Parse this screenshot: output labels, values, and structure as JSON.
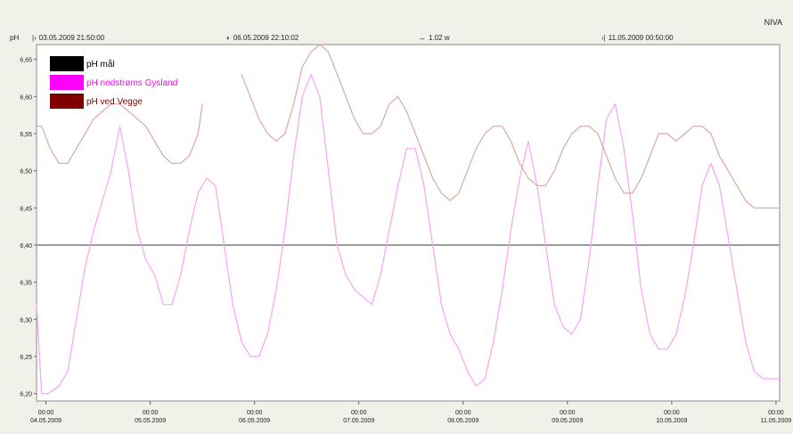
{
  "app": {
    "brand": "NIVA"
  },
  "toolbar": {
    "unit_label": "pH",
    "start_time": "03.05.2009 21:50:00",
    "cursor_time": "06.05.2009 22:10:02",
    "span": "1.02 w",
    "end_time": "11.05.2009 00:50:00",
    "start_icon": "start-marker-icon",
    "cursor_icon": "cursor-marker-icon",
    "span_icon": "span-arrows-icon",
    "end_icon": "end-marker-icon"
  },
  "chart_data": {
    "type": "line",
    "ylim": [
      6.19,
      6.67
    ],
    "xlim": [
      "03.05.2009 21:50",
      "11.05.2009 00:50"
    ],
    "yticks": [
      "6,65",
      "6,60",
      "6,55",
      "6,50",
      "6,45",
      "6,40",
      "6,35",
      "6,30",
      "6,25",
      "6,20"
    ],
    "xticks": [
      {
        "time": "00:00",
        "date": "04.05.2009"
      },
      {
        "time": "00:00",
        "date": "05.05.2009"
      },
      {
        "time": "00:00",
        "date": "06.05.2009"
      },
      {
        "time": "00:00",
        "date": "07.05.2009"
      },
      {
        "time": "00:00",
        "date": "08.05.2009"
      },
      {
        "time": "00:00",
        "date": "09.05.2009"
      },
      {
        "time": "00:00",
        "date": "10.05.2009"
      },
      {
        "time": "00:00",
        "date": "11.05.2009"
      }
    ],
    "legend_position": "top-left",
    "series": [
      {
        "name": "pH mål",
        "color": "#000000",
        "line_color": "#9c9c9c",
        "x": [
          "03.05.2009 21:50",
          "11.05.2009 00:50"
        ],
        "y": [
          6.4,
          6.4
        ]
      },
      {
        "name": "pH nedstrøms Gysland",
        "color": "#ff00ff",
        "line_color": "#f7a3f7",
        "x": [
          "03.05.2009 21:50",
          "03.05.2009 23:00",
          "04.05.2009 00:30",
          "04.05.2009 03:00",
          "04.05.2009 05:00",
          "04.05.2009 07:00",
          "04.05.2009 09:00",
          "04.05.2009 11:00",
          "04.05.2009 13:00",
          "04.05.2009 15:00",
          "04.05.2009 17:00",
          "04.05.2009 19:00",
          "04.05.2009 21:00",
          "04.05.2009 23:00",
          "05.05.2009 01:00",
          "05.05.2009 03:00",
          "05.05.2009 05:00",
          "05.05.2009 07:00",
          "05.05.2009 09:00",
          "05.05.2009 11:00",
          "05.05.2009 13:00",
          "05.05.2009 15:00",
          "05.05.2009 17:00",
          "05.05.2009 19:00",
          "05.05.2009 21:00",
          "05.05.2009 23:00",
          "06.05.2009 01:00",
          "06.05.2009 03:00",
          "06.05.2009 05:00",
          "06.05.2009 07:00",
          "06.05.2009 09:00",
          "06.05.2009 11:00",
          "06.05.2009 13:00",
          "06.05.2009 15:00",
          "06.05.2009 17:00",
          "06.05.2009 19:00",
          "06.05.2009 21:00",
          "06.05.2009 23:00",
          "07.05.2009 01:00",
          "07.05.2009 03:00",
          "07.05.2009 05:00",
          "07.05.2009 07:00",
          "07.05.2009 09:00",
          "07.05.2009 11:00",
          "07.05.2009 13:00",
          "07.05.2009 15:00",
          "07.05.2009 17:00",
          "07.05.2009 19:00",
          "07.05.2009 21:00",
          "07.05.2009 23:00",
          "08.05.2009 01:00",
          "08.05.2009 03:00",
          "08.05.2009 05:00",
          "08.05.2009 07:00",
          "08.05.2009 09:00",
          "08.05.2009 11:00",
          "08.05.2009 13:00",
          "08.05.2009 15:00",
          "08.05.2009 17:00",
          "08.05.2009 19:00",
          "08.05.2009 21:00",
          "08.05.2009 23:00",
          "09.05.2009 01:00",
          "09.05.2009 03:00",
          "09.05.2009 05:00",
          "09.05.2009 07:00",
          "09.05.2009 09:00",
          "09.05.2009 11:00",
          "09.05.2009 13:00",
          "09.05.2009 15:00",
          "09.05.2009 17:00",
          "09.05.2009 19:00",
          "09.05.2009 21:00",
          "09.05.2009 23:00",
          "10.05.2009 01:00",
          "10.05.2009 03:00",
          "10.05.2009 05:00",
          "10.05.2009 07:00",
          "10.05.2009 09:00",
          "10.05.2009 11:00",
          "10.05.2009 13:00",
          "10.05.2009 15:00",
          "10.05.2009 17:00",
          "10.05.2009 19:00",
          "10.05.2009 21:00",
          "10.05.2009 23:00",
          "11.05.2009 00:50"
        ],
        "y": [
          6.32,
          6.2,
          6.2,
          6.21,
          6.23,
          6.3,
          6.37,
          6.42,
          6.46,
          6.5,
          6.56,
          6.5,
          6.42,
          6.38,
          6.36,
          6.32,
          6.32,
          6.36,
          6.42,
          6.47,
          6.49,
          6.48,
          6.4,
          6.32,
          6.27,
          6.25,
          6.25,
          6.28,
          6.34,
          6.42,
          6.52,
          6.6,
          6.63,
          6.6,
          6.5,
          6.4,
          6.36,
          6.34,
          6.33,
          6.32,
          6.36,
          6.42,
          6.48,
          6.53,
          6.53,
          6.48,
          6.4,
          6.32,
          6.28,
          6.26,
          6.23,
          6.21,
          6.22,
          6.27,
          6.34,
          6.42,
          6.49,
          6.54,
          6.48,
          6.4,
          6.32,
          6.29,
          6.28,
          6.3,
          6.38,
          6.48,
          6.57,
          6.59,
          6.53,
          6.44,
          6.34,
          6.28,
          6.26,
          6.26,
          6.28,
          6.33,
          6.4,
          6.48,
          6.51,
          6.48,
          6.41,
          6.34,
          6.27,
          6.23,
          6.22,
          6.22,
          6.22
        ]
      },
      {
        "name": "pH ved Vegge",
        "color": "#800000",
        "line_color": "#dca8a2",
        "x": [
          "03.05.2009 21:50",
          "03.05.2009 23:00",
          "04.05.2009 01:00",
          "04.05.2009 03:00",
          "04.05.2009 05:00",
          "04.05.2009 07:00",
          "04.05.2009 09:00",
          "04.05.2009 11:00",
          "04.05.2009 13:00",
          "04.05.2009 15:00",
          "04.05.2009 17:00",
          "04.05.2009 19:00",
          "04.05.2009 21:00",
          "04.05.2009 23:00",
          "05.05.2009 01:00",
          "05.05.2009 03:00",
          "05.05.2009 05:00",
          "05.05.2009 07:00",
          "05.05.2009 09:00",
          "05.05.2009 11:00",
          "05.05.2009 12:00",
          null,
          "05.05.2009 21:00",
          "05.05.2009 23:00",
          "06.05.2009 01:00",
          "06.05.2009 03:00",
          "06.05.2009 05:00",
          "06.05.2009 07:00",
          "06.05.2009 09:00",
          "06.05.2009 11:00",
          "06.05.2009 13:00",
          "06.05.2009 15:00",
          "06.05.2009 17:00",
          "06.05.2009 19:00",
          "06.05.2009 21:00",
          "06.05.2009 23:00",
          "07.05.2009 01:00",
          "07.05.2009 03:00",
          "07.05.2009 05:00",
          "07.05.2009 07:00",
          "07.05.2009 09:00",
          "07.05.2009 11:00",
          "07.05.2009 13:00",
          "07.05.2009 15:00",
          "07.05.2009 17:00",
          "07.05.2009 19:00",
          "07.05.2009 21:00",
          "07.05.2009 23:00",
          "08.05.2009 01:00",
          "08.05.2009 03:00",
          "08.05.2009 05:00",
          "08.05.2009 07:00",
          "08.05.2009 09:00",
          "08.05.2009 11:00",
          "08.05.2009 13:00",
          "08.05.2009 15:00",
          "08.05.2009 17:00",
          "08.05.2009 19:00",
          "08.05.2009 21:00",
          "08.05.2009 23:00",
          "09.05.2009 01:00",
          "09.05.2009 03:00",
          "09.05.2009 05:00",
          "09.05.2009 07:00",
          "09.05.2009 09:00",
          "09.05.2009 11:00",
          "09.05.2009 13:00",
          "09.05.2009 15:00",
          "09.05.2009 17:00",
          "09.05.2009 19:00",
          "09.05.2009 21:00",
          "09.05.2009 23:00",
          "10.05.2009 01:00",
          "10.05.2009 03:00",
          "10.05.2009 05:00",
          "10.05.2009 07:00",
          "10.05.2009 09:00",
          "10.05.2009 11:00",
          "10.05.2009 13:00",
          "10.05.2009 15:00",
          "10.05.2009 17:00",
          "10.05.2009 19:00",
          "10.05.2009 21:00",
          "10.05.2009 23:00",
          "11.05.2009 00:50"
        ],
        "y": [
          6.56,
          6.56,
          6.53,
          6.51,
          6.51,
          6.53,
          6.55,
          6.57,
          6.58,
          6.59,
          6.59,
          6.58,
          6.57,
          6.56,
          6.54,
          6.52,
          6.51,
          6.51,
          6.52,
          6.55,
          6.59,
          null,
          6.63,
          6.6,
          6.57,
          6.55,
          6.54,
          6.55,
          6.59,
          6.64,
          6.66,
          6.67,
          6.66,
          6.63,
          6.6,
          6.57,
          6.55,
          6.55,
          6.56,
          6.59,
          6.6,
          6.58,
          6.55,
          6.52,
          6.49,
          6.47,
          6.46,
          6.47,
          6.5,
          6.53,
          6.55,
          6.56,
          6.56,
          6.54,
          6.51,
          6.49,
          6.48,
          6.48,
          6.5,
          6.53,
          6.55,
          6.56,
          6.56,
          6.55,
          6.52,
          6.49,
          6.47,
          6.47,
          6.49,
          6.52,
          6.55,
          6.55,
          6.54,
          6.55,
          6.56,
          6.56,
          6.55,
          6.52,
          6.5,
          6.48,
          6.46,
          6.45,
          6.45,
          6.45,
          6.45
        ]
      }
    ]
  }
}
